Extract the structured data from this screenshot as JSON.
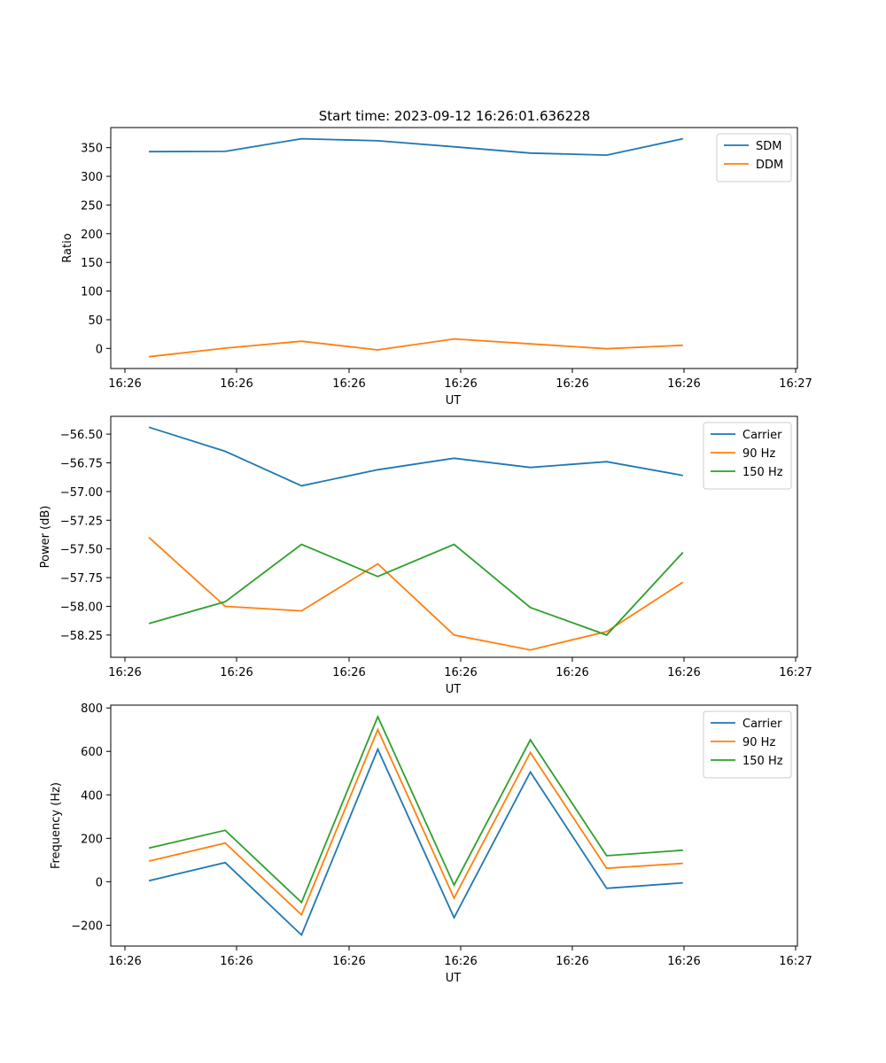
{
  "figure_title": "Start time: 2023-09-12 16:26:01.636228",
  "colors": {
    "series_1": "#1f77b4",
    "series_2": "#ff7f0e",
    "series_3": "#2ca02c",
    "axis": "#000000",
    "legend_border": "#cccccc"
  },
  "chart_data": [
    {
      "type": "line",
      "title": "Start time: 2023-09-12 16:26:01.636228",
      "xlabel": "UT",
      "ylabel": "Ratio",
      "x_tick_labels": [
        "16:26",
        "16:26",
        "16:26",
        "16:26",
        "16:26",
        "16:26",
        "16:27"
      ],
      "x_index": [
        0,
        1,
        2,
        3,
        4,
        5,
        6,
        7
      ],
      "ylim": [
        -35,
        385
      ],
      "y_ticks": [
        0,
        50,
        100,
        150,
        200,
        250,
        300,
        350
      ],
      "legend_position": "upper right",
      "series": [
        {
          "name": "SDM",
          "values": [
            343,
            343.5,
            365.5,
            362,
            351.5,
            340.5,
            337,
            365.5
          ]
        },
        {
          "name": "DDM",
          "values": [
            -14.5,
            0.5,
            12.5,
            -2.5,
            16.5,
            8,
            -0.5,
            5.5
          ]
        }
      ]
    },
    {
      "type": "line",
      "title": "",
      "xlabel": "UT",
      "ylabel": "Power (dB)",
      "x_tick_labels": [
        "16:26",
        "16:26",
        "16:26",
        "16:26",
        "16:26",
        "16:26",
        "16:27"
      ],
      "x_index": [
        0,
        1,
        2,
        3,
        4,
        5,
        6,
        7
      ],
      "ylim": [
        -58.444,
        -56.345
      ],
      "y_ticks": [
        -58.25,
        -58.0,
        -57.75,
        -57.5,
        -57.25,
        -57.0,
        -56.75,
        -56.5
      ],
      "legend_position": "upper right",
      "series": [
        {
          "name": "Carrier",
          "values": [
            -56.44,
            -56.65,
            -56.95,
            -56.81,
            -56.71,
            -56.79,
            -56.74,
            -56.86
          ]
        },
        {
          "name": "90 Hz",
          "values": [
            -57.4,
            -58.0,
            -58.04,
            -57.63,
            -58.25,
            -58.38,
            -58.22,
            -57.79
          ]
        },
        {
          "name": "150 Hz",
          "values": [
            -58.15,
            -57.96,
            -57.46,
            -57.74,
            -57.46,
            -58.01,
            -58.25,
            -57.53
          ]
        }
      ]
    },
    {
      "type": "line",
      "title": "",
      "xlabel": "UT",
      "ylabel": "Frequency (Hz)",
      "x_tick_labels": [
        "16:26",
        "16:26",
        "16:26",
        "16:26",
        "16:26",
        "16:26",
        "16:27"
      ],
      "x_index": [
        0,
        1,
        2,
        3,
        4,
        5,
        6,
        7
      ],
      "ylim": [
        -296,
        813
      ],
      "y_ticks": [
        -200,
        0,
        200,
        400,
        600,
        800
      ],
      "legend_position": "upper right",
      "series": [
        {
          "name": "Carrier",
          "values": [
            5,
            88,
            -245,
            610,
            -165,
            505,
            -30,
            -5
          ]
        },
        {
          "name": "90 Hz",
          "values": [
            95,
            178,
            -152,
            700,
            -75,
            595,
            62,
            85
          ]
        },
        {
          "name": "150 Hz",
          "values": [
            155,
            237,
            -95,
            760,
            -15,
            653,
            120,
            145
          ]
        }
      ]
    }
  ]
}
